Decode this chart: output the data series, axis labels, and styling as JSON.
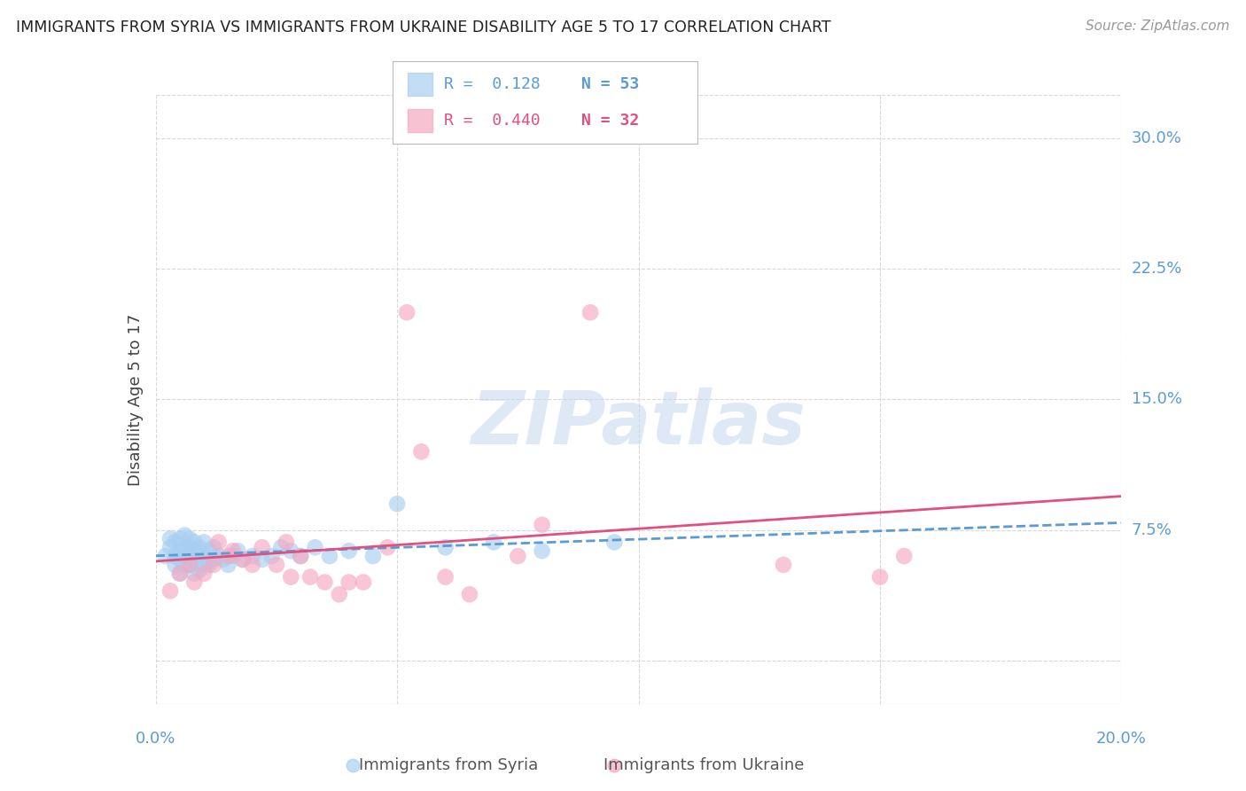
{
  "title": "IMMIGRANTS FROM SYRIA VS IMMIGRANTS FROM UKRAINE DISABILITY AGE 5 TO 17 CORRELATION CHART",
  "source": "Source: ZipAtlas.com",
  "ylabel": "Disability Age 5 to 17",
  "xlim": [
    0.0,
    0.2
  ],
  "ylim": [
    -0.025,
    0.325
  ],
  "yticks": [
    0.0,
    0.075,
    0.15,
    0.225,
    0.3
  ],
  "xticks": [
    0.0,
    0.05,
    0.1,
    0.15,
    0.2
  ],
  "grid_color": "#d8d8d8",
  "watermark_text": "ZIPatlas",
  "legend_syria_r": "R =  0.128",
  "legend_syria_n": "N = 53",
  "legend_ukraine_r": "R =  0.440",
  "legend_ukraine_n": "N = 32",
  "syria_color": "#a8cff0",
  "ukraine_color": "#f5a8c0",
  "syria_line_color": "#5b9bd5",
  "ukraine_line_color": "#e05080",
  "axis_label_color": "#5b9bd5",
  "title_color": "#222222",
  "legend_r_color_syria": "#5b9bd5",
  "legend_n_color_syria": "#5b9bd5",
  "legend_r_color_ukraine": "#e05080",
  "legend_n_color_ukraine": "#e05080",
  "syria_x": [
    0.002,
    0.003,
    0.003,
    0.004,
    0.004,
    0.004,
    0.005,
    0.005,
    0.005,
    0.005,
    0.006,
    0.006,
    0.006,
    0.006,
    0.007,
    0.007,
    0.007,
    0.007,
    0.008,
    0.008,
    0.008,
    0.008,
    0.009,
    0.009,
    0.009,
    0.01,
    0.01,
    0.01,
    0.011,
    0.011,
    0.012,
    0.012,
    0.013,
    0.014,
    0.015,
    0.016,
    0.017,
    0.018,
    0.02,
    0.022,
    0.024,
    0.026,
    0.028,
    0.03,
    0.033,
    0.036,
    0.04,
    0.045,
    0.05,
    0.06,
    0.07,
    0.08,
    0.095
  ],
  "syria_y": [
    0.06,
    0.065,
    0.07,
    0.055,
    0.06,
    0.068,
    0.05,
    0.058,
    0.063,
    0.07,
    0.055,
    0.06,
    0.065,
    0.072,
    0.055,
    0.06,
    0.065,
    0.07,
    0.05,
    0.058,
    0.063,
    0.068,
    0.052,
    0.06,
    0.065,
    0.055,
    0.06,
    0.068,
    0.055,
    0.063,
    0.058,
    0.065,
    0.06,
    0.058,
    0.055,
    0.06,
    0.063,
    0.058,
    0.06,
    0.058,
    0.06,
    0.065,
    0.063,
    0.06,
    0.065,
    0.06,
    0.063,
    0.06,
    0.09,
    0.065,
    0.068,
    0.063,
    0.068
  ],
  "ukraine_x": [
    0.003,
    0.005,
    0.007,
    0.008,
    0.01,
    0.012,
    0.013,
    0.015,
    0.016,
    0.018,
    0.02,
    0.022,
    0.025,
    0.027,
    0.028,
    0.03,
    0.032,
    0.035,
    0.038,
    0.04,
    0.043,
    0.048,
    0.052,
    0.055,
    0.06,
    0.065,
    0.075,
    0.08,
    0.09,
    0.13,
    0.15,
    0.155
  ],
  "ukraine_y": [
    0.04,
    0.05,
    0.055,
    0.045,
    0.05,
    0.055,
    0.068,
    0.06,
    0.063,
    0.058,
    0.055,
    0.065,
    0.055,
    0.068,
    0.048,
    0.06,
    0.048,
    0.045,
    0.038,
    0.045,
    0.045,
    0.065,
    0.2,
    0.12,
    0.048,
    0.038,
    0.06,
    0.078,
    0.2,
    0.055,
    0.048,
    0.06
  ]
}
